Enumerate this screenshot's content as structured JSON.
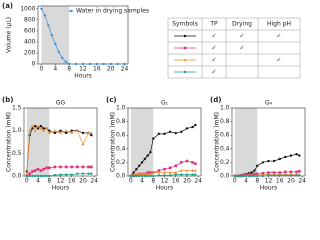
{
  "chart_data": [
    {
      "type": "line",
      "panel_label": "(a)",
      "xlabel": "Hours",
      "ylabel": "Volume (µL)",
      "x": [
        0,
        1,
        2,
        3,
        4,
        5,
        6,
        7,
        8,
        10,
        12,
        14,
        16,
        18,
        20,
        22,
        24
      ],
      "series": [
        {
          "name": "Water in drying samples",
          "color": "#3b8fd4",
          "marker": "circle",
          "values": [
            1000,
            880,
            700,
            520,
            360,
            220,
            110,
            40,
            0,
            0,
            0,
            0,
            0,
            0,
            0,
            0,
            0
          ]
        }
      ],
      "xlim": [
        -1,
        25
      ],
      "ylim": [
        0,
        1050
      ],
      "xticks": [
        0,
        4,
        8,
        12,
        16,
        20,
        24
      ],
      "yticks": [
        0,
        200,
        400,
        600,
        800,
        1000
      ],
      "shade_x": [
        0,
        8
      ],
      "legend": "upper right"
    },
    {
      "type": "line",
      "panel_label": "(b)",
      "title": "GG",
      "xlabel": "Hours",
      "ylabel": "Concentration (mM)",
      "x": [
        0,
        1,
        2,
        3,
        4,
        5,
        6,
        7,
        8,
        10,
        12,
        14,
        16,
        18,
        20,
        22,
        23
      ],
      "series": [
        {
          "color": "#111111",
          "marker": "circle",
          "values": [
            0.1,
            0.9,
            1.05,
            1.1,
            1.05,
            1.1,
            1.05,
            1.05,
            1.0,
            0.95,
            1.0,
            0.95,
            1.0,
            1.0,
            0.95,
            0.95,
            0.9
          ]
        },
        {
          "color": "#e0307a",
          "marker": "square",
          "values": [
            0.0,
            0.05,
            0.1,
            0.12,
            0.15,
            0.12,
            0.15,
            0.18,
            0.18,
            0.2,
            0.2,
            0.2,
            0.2,
            0.2,
            0.2,
            0.2,
            0.2
          ]
        },
        {
          "color": "#f28e2b",
          "marker": "triangle",
          "values": [
            0.05,
            1.0,
            1.1,
            1.0,
            1.1,
            1.05,
            1.0,
            1.05,
            0.95,
            1.0,
            0.95,
            1.0,
            0.95,
            1.0,
            0.7,
            0.95,
            0.95
          ]
        },
        {
          "color": "#1a9e8a",
          "marker": "circle",
          "values": [
            0,
            0,
            0,
            0,
            0,
            0,
            0,
            0,
            0,
            0.02,
            0.03,
            0.03,
            0.03,
            0.05,
            0.05,
            0.05,
            0.05
          ]
        }
      ],
      "xlim": [
        -1,
        25
      ],
      "ylim": [
        0,
        1.5
      ],
      "xticks": [
        0,
        4,
        8,
        12,
        16,
        20,
        24
      ],
      "yticks": [
        {
          "value": 0,
          "label": "0.0"
        },
        {
          "value": 0.5,
          "label": "0.5"
        },
        {
          "value": 1,
          "label": "1.0"
        },
        {
          "value": 1.5,
          "label": "1.5"
        }
      ],
      "shade_x": [
        0,
        8
      ]
    },
    {
      "type": "line",
      "panel_label": "(c)",
      "title": "G₁",
      "xlabel": "Hours",
      "ylabel": "Concentration (mM)",
      "x": [
        0,
        1,
        2,
        3,
        4,
        5,
        6,
        7,
        8,
        10,
        12,
        14,
        16,
        18,
        20,
        22,
        23
      ],
      "series": [
        {
          "color": "#111111",
          "marker": "circle",
          "values": [
            0,
            0.05,
            0.1,
            0.15,
            0.2,
            0.25,
            0.3,
            0.35,
            0.55,
            0.62,
            0.62,
            0.65,
            0.63,
            0.65,
            0.7,
            0.72,
            0.75
          ]
        },
        {
          "color": "#e0307a",
          "marker": "square",
          "values": [
            0,
            0,
            0.02,
            0.03,
            0.03,
            0.03,
            0.05,
            0.05,
            0.05,
            0.08,
            0.1,
            0.12,
            0.15,
            0.2,
            0.22,
            0.2,
            0.18
          ]
        },
        {
          "color": "#f28e2b",
          "marker": "triangle",
          "values": [
            0,
            0.02,
            0.03,
            0.03,
            0.03,
            0.03,
            0.03,
            0.03,
            0.05,
            0.05,
            0.05,
            0.05,
            0.05,
            0.08,
            0.08,
            0.08,
            0.08
          ]
        },
        {
          "color": "#1a9e8a",
          "marker": "circle",
          "values": [
            0,
            0,
            0,
            0,
            0,
            0,
            0,
            0,
            0,
            0.01,
            0.01,
            0.01,
            0.02,
            0.02,
            0.02,
            0.02,
            0.02
          ]
        }
      ],
      "xlim": [
        -1,
        25
      ],
      "ylim": [
        0,
        1.0
      ],
      "xticks": [
        0,
        4,
        8,
        12,
        16,
        20,
        24
      ],
      "yticks": [
        {
          "value": 0,
          "label": "0.0"
        },
        0.2,
        0.4,
        0.6,
        0.8,
        {
          "value": 1,
          "label": "1.0"
        }
      ],
      "shade_x": [
        0,
        8
      ]
    },
    {
      "type": "line",
      "panel_label": "(d)",
      "title": "G₄",
      "xlabel": "Hours",
      "ylabel": "Concentration (mM)",
      "x": [
        0,
        1,
        2,
        3,
        4,
        5,
        6,
        7,
        8,
        10,
        12,
        14,
        16,
        18,
        20,
        22,
        23
      ],
      "series": [
        {
          "color": "#111111",
          "marker": "circle",
          "values": [
            0,
            0,
            0.01,
            0.02,
            0.03,
            0.04,
            0.05,
            0.08,
            0.15,
            0.2,
            0.22,
            0.22,
            0.25,
            0.28,
            0.3,
            0.32,
            0.3
          ]
        },
        {
          "color": "#e0307a",
          "marker": "square",
          "values": [
            0,
            0,
            0,
            0.01,
            0.02,
            0.02,
            0.02,
            0.03,
            0.03,
            0.04,
            0.05,
            0.05,
            0.05,
            0.06,
            0.06,
            0.06,
            0.07
          ]
        },
        {
          "color": "#f28e2b",
          "marker": "triangle",
          "values": [
            0,
            0,
            0,
            0,
            0.01,
            0.01,
            0.01,
            0.01,
            0.01,
            0.02,
            0.02,
            0.02,
            0.02,
            0.02,
            0.02,
            0.02,
            0.02
          ]
        },
        {
          "color": "#1a9e8a",
          "marker": "circle",
          "values": [
            0,
            0,
            0,
            0,
            0,
            0,
            0,
            0,
            0,
            0,
            0.01,
            0.01,
            0.01,
            0.01,
            0.01,
            0.01,
            0.01
          ]
        }
      ],
      "xlim": [
        -1,
        25
      ],
      "ylim": [
        0,
        1.0
      ],
      "xticks": [
        0,
        4,
        8,
        12,
        16,
        20,
        24
      ],
      "yticks": [
        {
          "value": 0,
          "label": "0.0"
        },
        0.2,
        0.4,
        0.6,
        0.8,
        {
          "value": 1,
          "label": "1.0"
        }
      ],
      "shade_x": [
        0,
        8
      ]
    }
  ],
  "table": {
    "headers": [
      "Symbols",
      "TP",
      "Drying",
      "High pH"
    ],
    "rows": [
      [
        "✓",
        "✓",
        "✓"
      ],
      [
        "✓",
        "✓",
        null
      ],
      [
        "✓",
        null,
        "✓"
      ],
      [
        "✓",
        null,
        null
      ]
    ]
  }
}
